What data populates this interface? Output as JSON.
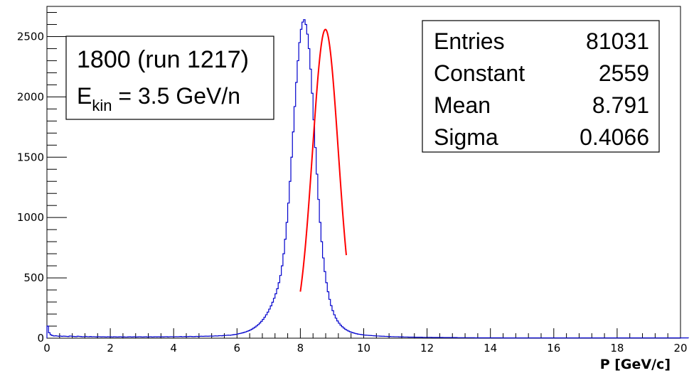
{
  "chart_data": {
    "type": "bar",
    "title": "",
    "xlabel": "P [GeV/c]",
    "ylabel": "",
    "xlim": [
      0,
      20
    ],
    "ylim": [
      0,
      2750
    ],
    "grid": false,
    "x_tick_labels": [
      "0",
      "2",
      "4",
      "6",
      "8",
      "10",
      "12",
      "14",
      "16",
      "18",
      "20"
    ],
    "y_tick_labels": [
      "0",
      "500",
      "1000",
      "1500",
      "2000",
      "2500"
    ],
    "histogram": {
      "name": "",
      "color": "#0000cc",
      "bin_edges_start": 0,
      "bin_width": 0.05,
      "values": [
        100,
        45,
        28,
        22,
        18,
        20,
        18,
        16,
        18,
        15,
        17,
        16,
        15,
        14,
        18,
        17,
        15,
        14,
        13,
        16,
        15,
        14,
        12,
        13,
        15,
        13,
        12,
        14,
        12,
        13,
        12,
        11,
        13,
        12,
        11,
        12,
        11,
        10,
        12,
        11,
        11,
        10,
        12,
        11,
        10,
        11,
        12,
        10,
        11,
        10,
        10,
        11,
        12,
        10,
        11,
        12,
        10,
        11,
        12,
        11,
        10,
        11,
        12,
        10,
        11,
        12,
        10,
        11,
        12,
        11,
        12,
        11,
        12,
        11,
        12,
        13,
        11,
        12,
        13,
        12,
        12,
        13,
        12,
        13,
        14,
        12,
        13,
        14,
        13,
        14,
        15,
        14,
        13,
        14,
        15,
        14,
        15,
        16,
        15,
        16,
        17,
        16,
        17,
        18,
        17,
        18,
        19,
        18,
        20,
        21,
        20,
        22,
        23,
        24,
        25,
        24,
        26,
        28,
        30,
        32,
        35,
        38,
        41,
        44,
        48,
        52,
        57,
        62,
        68,
        75,
        83,
        92,
        102,
        113,
        126,
        140,
        156,
        174,
        194,
        216,
        241,
        268,
        298,
        331,
        368,
        410,
        460,
        520,
        600,
        700,
        820,
        960,
        1120,
        1300,
        1500,
        1710,
        1920,
        2120,
        2300,
        2450,
        2560,
        2620,
        2640,
        2600,
        2520,
        2400,
        2230,
        2030,
        1810,
        1580,
        1360,
        1150,
        960,
        800,
        665,
        552,
        460,
        385,
        322,
        270,
        228,
        194,
        166,
        143,
        124,
        108,
        95,
        84,
        74,
        66,
        59,
        53,
        48,
        44,
        40,
        37,
        34,
        32,
        30,
        28,
        26,
        25,
        24,
        23,
        22,
        21,
        20,
        19,
        18,
        18,
        17,
        16,
        16,
        15,
        15,
        14,
        14,
        13,
        13,
        12,
        12,
        12,
        11,
        11,
        11,
        10,
        10,
        10,
        9,
        9,
        9,
        9,
        8,
        8,
        8,
        8,
        8,
        7,
        7,
        7,
        7,
        7,
        7,
        6,
        6,
        6,
        6,
        6,
        6,
        6,
        5,
        5,
        5,
        5,
        5,
        5,
        5,
        5,
        5,
        4,
        4,
        4,
        4,
        4,
        4,
        4,
        4,
        4,
        4,
        4,
        3,
        3,
        3,
        3,
        3,
        3,
        3,
        3,
        3,
        3,
        3,
        3,
        3,
        3,
        3,
        3,
        3,
        2,
        2,
        2,
        2,
        2,
        2,
        2,
        2,
        2,
        2,
        2,
        2,
        2,
        2,
        2,
        2,
        2,
        2,
        2,
        2,
        2,
        2,
        2,
        2,
        2,
        2,
        2,
        2,
        2,
        2,
        2,
        2,
        2,
        2,
        2,
        2,
        2,
        2,
        2,
        2,
        2,
        2,
        2,
        2,
        2,
        2,
        2,
        2,
        2,
        2,
        2,
        2,
        2,
        2,
        2,
        2,
        2,
        2,
        2,
        2,
        2,
        2,
        2,
        2,
        2,
        2,
        2,
        2,
        2,
        2,
        2,
        2,
        2,
        2,
        2,
        2,
        2,
        2,
        2,
        2,
        2,
        2,
        2,
        2,
        2,
        2,
        2,
        2,
        2,
        2,
        2,
        2,
        2,
        2,
        2,
        2,
        2,
        2,
        2,
        2,
        2,
        2,
        2,
        2,
        2,
        2,
        2,
        2,
        2,
        2,
        2,
        2,
        2,
        2,
        2,
        2,
        2,
        2
      ]
    },
    "fit": {
      "color": "#ff0000",
      "function": "gaus",
      "constant": 2559,
      "mean": 8.791,
      "sigma": 0.4066,
      "range": [
        8.0,
        9.45
      ]
    },
    "label_box": {
      "line1": "1800 (run 1217)",
      "line2_main": "E",
      "line2_sub": "kin",
      "line2_rest": " = 3.5 GeV/n"
    },
    "stats_box": {
      "rows": [
        {
          "label": "Entries",
          "value": "81031"
        },
        {
          "label": "Constant",
          "value": "2559"
        },
        {
          "label": "Mean",
          "value": "8.791"
        },
        {
          "label": "Sigma",
          "value": "0.4066"
        }
      ]
    }
  }
}
